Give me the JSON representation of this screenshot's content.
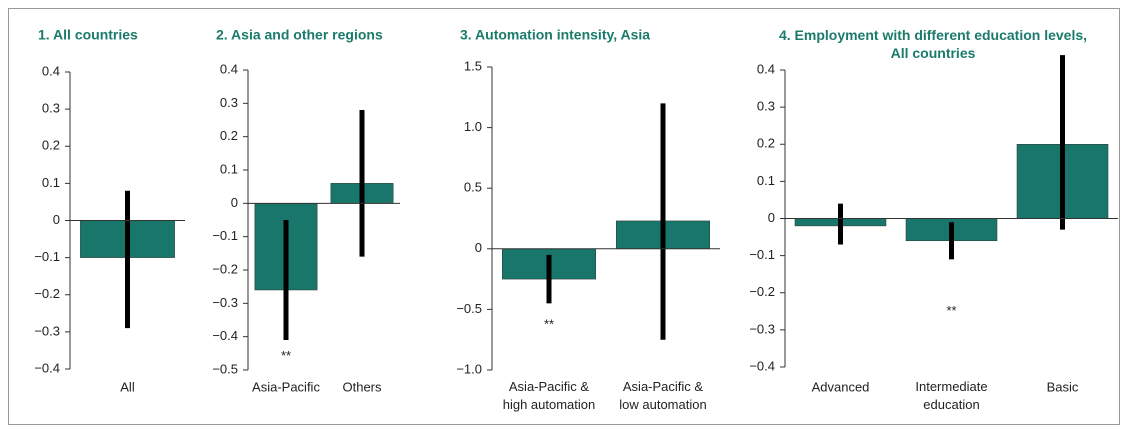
{
  "chart_data": [
    {
      "type": "bar",
      "title": "1. All countries",
      "categories": [
        "All"
      ],
      "values": [
        -0.1
      ],
      "ci_low": [
        -0.29
      ],
      "ci_high": [
        0.08
      ],
      "color": "#18776a",
      "ylim": [
        -0.4,
        0.4
      ],
      "yticks": [
        {
          "value": -0.4,
          "label": "−0.4"
        },
        {
          "value": -0.3,
          "label": "−0.3"
        },
        {
          "value": -0.2,
          "label": "−0.2"
        },
        {
          "value": -0.1,
          "label": "−0.1"
        },
        0,
        0.1,
        0.2,
        0.3,
        0.4
      ],
      "annotations": []
    },
    {
      "type": "bar",
      "title": "2. Asia and other regions",
      "categories": [
        "Asia-Pacific",
        "Others"
      ],
      "values": [
        -0.26,
        0.06
      ],
      "ci_low": [
        -0.41,
        -0.16
      ],
      "ci_high": [
        -0.05,
        0.28
      ],
      "color": "#18776a",
      "ylim": [
        -0.5,
        0.4
      ],
      "yticks": [
        {
          "value": -0.5,
          "label": "−0.5"
        },
        {
          "value": -0.4,
          "label": "−0.4"
        },
        {
          "value": -0.3,
          "label": "−0.3"
        },
        {
          "value": -0.2,
          "label": "−0.2"
        },
        {
          "value": -0.1,
          "label": "−0.1"
        },
        0,
        0.1,
        0.2,
        0.3,
        0.4
      ],
      "annotations": [
        {
          "text": "**",
          "x": "Asia-Pacific",
          "y": -0.46
        }
      ]
    },
    {
      "type": "bar",
      "title": "3. Automation intensity, Asia",
      "categories": [
        "Asia-Pacific &\nhigh automation",
        "Asia-Pacific &\nlow automation"
      ],
      "values": [
        -0.25,
        0.23
      ],
      "ci_low": [
        -0.45,
        -0.75
      ],
      "ci_high": [
        -0.05,
        1.2
      ],
      "color": "#18776a",
      "ylim": [
        -1.0,
        1.5
      ],
      "yticks": [
        {
          "value": -1.0,
          "label": "−1.0"
        },
        {
          "value": -0.5,
          "label": "−0.5"
        },
        0,
        0.5,
        {
          "value": 1.0,
          "label": "1.0"
        },
        1.5
      ],
      "annotations": [
        {
          "text": "**",
          "x": "Asia-Pacific &\nhigh automation",
          "y": -0.63
        }
      ]
    },
    {
      "type": "bar",
      "title": "4. Employment with different education levels,\nAll countries",
      "categories": [
        "Advanced",
        "Intermediate\neducation",
        "Basic"
      ],
      "values": [
        -0.02,
        -0.06,
        0.2
      ],
      "ci_low": [
        -0.07,
        -0.11,
        -0.03
      ],
      "ci_high": [
        0.04,
        -0.01,
        0.44
      ],
      "color": "#18776a",
      "ylim": [
        -0.4,
        0.4
      ],
      "yticks": [
        {
          "value": -0.4,
          "label": "−0.4"
        },
        {
          "value": -0.3,
          "label": "−0.3"
        },
        {
          "value": -0.2,
          "label": "−0.2"
        },
        {
          "value": -0.1,
          "label": "−0.1"
        },
        0,
        0.1,
        0.2,
        0.3,
        0.4
      ],
      "annotations": [
        {
          "text": "**",
          "x": "Intermediate\neducation",
          "y": -0.25
        }
      ]
    }
  ]
}
